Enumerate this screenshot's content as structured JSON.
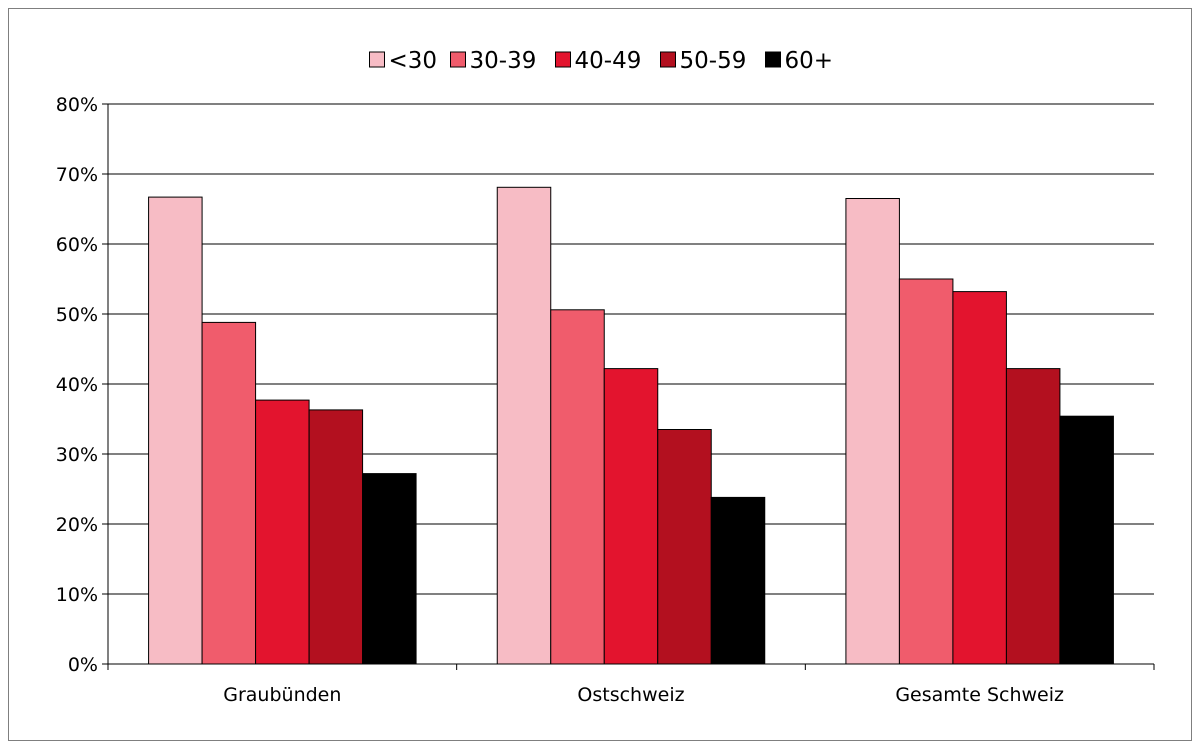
{
  "chart_data": {
    "type": "bar",
    "categories": [
      "Graubünden",
      "Ostschweiz",
      "Gesamte Schweiz"
    ],
    "series": [
      {
        "name": "<30",
        "color": "#f7bcc5",
        "values": [
          66.7,
          68.1,
          66.5
        ]
      },
      {
        "name": "30-39",
        "color": "#f05c6c",
        "values": [
          48.8,
          50.6,
          55.0
        ]
      },
      {
        "name": "40-49",
        "color": "#e3142e",
        "values": [
          37.7,
          42.2,
          53.2
        ]
      },
      {
        "name": "50-59",
        "color": "#b3101f",
        "values": [
          36.3,
          33.5,
          42.2
        ]
      },
      {
        "name": "60+",
        "color": "#000000",
        "values": [
          27.2,
          23.8,
          35.4
        ]
      }
    ],
    "title": "",
    "xlabel": "",
    "ylabel": "",
    "ylim": [
      0,
      80
    ],
    "yticks": [
      0,
      10,
      20,
      30,
      40,
      50,
      60,
      70,
      80
    ],
    "ytick_labels": [
      "0%",
      "10%",
      "20%",
      "30%",
      "40%",
      "50%",
      "60%",
      "70%",
      "80%"
    ],
    "grid": true,
    "legend_position": "top-center"
  }
}
